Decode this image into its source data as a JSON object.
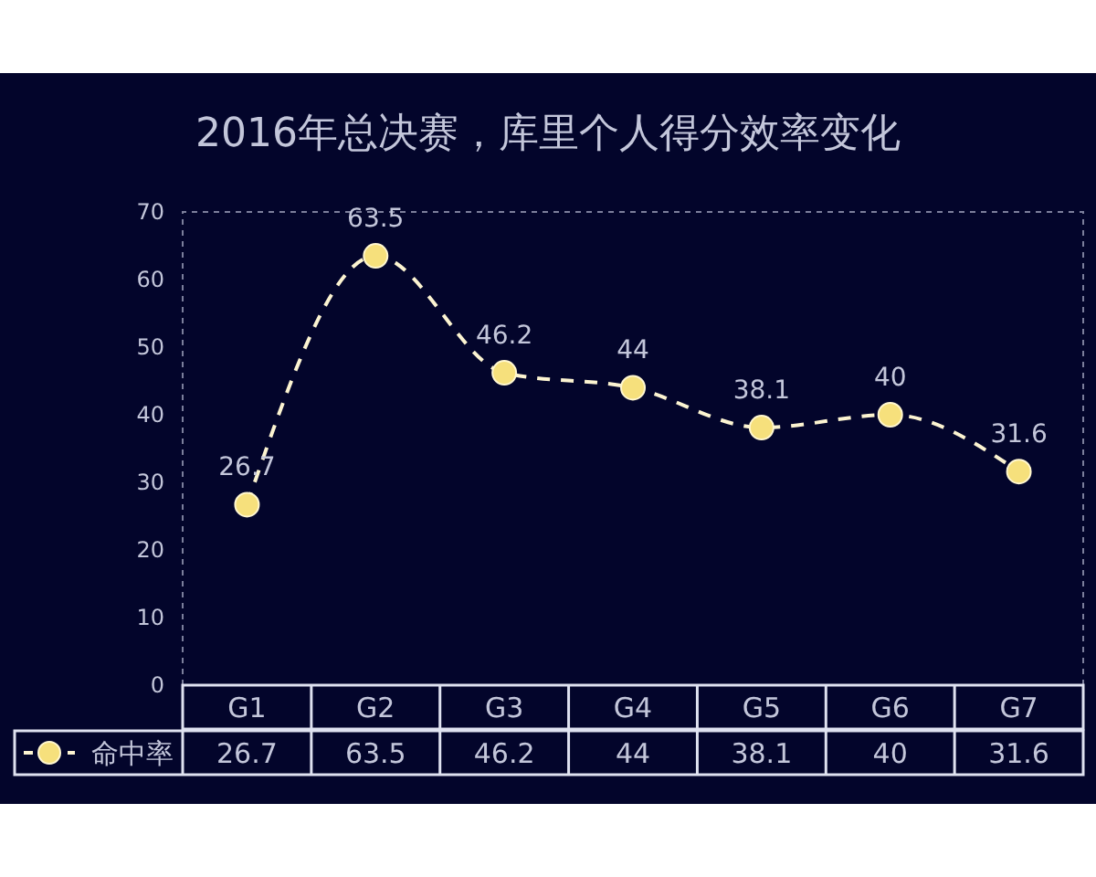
{
  "chart_data": {
    "type": "line",
    "title": "2016年总决赛，库里个人得分效率变化",
    "categories": [
      "G1",
      "G2",
      "G3",
      "G4",
      "G5",
      "G6",
      "G7"
    ],
    "series": [
      {
        "name": "命中率",
        "color": "#f6e07c",
        "values": [
          26.7,
          63.5,
          46.2,
          44,
          38.1,
          40,
          31.6
        ]
      }
    ],
    "ylim": [
      0,
      70
    ],
    "yticks": [
      0,
      10,
      20,
      30,
      40,
      50,
      60,
      70
    ],
    "annotations": [
      {
        "text": "26.7",
        "x": "G1",
        "y": 26.7
      },
      {
        "text": "63.5",
        "x": "G2",
        "y": 63.5
      },
      {
        "text": "46.2",
        "x": "G3",
        "y": 46.2
      },
      {
        "text": "44",
        "x": "G4",
        "y": 44
      },
      {
        "text": "38.1",
        "x": "G5",
        "y": 38.1
      },
      {
        "text": "40",
        "x": "G6",
        "y": 40
      },
      {
        "text": "31.6",
        "x": "G7",
        "y": 31.6
      }
    ],
    "legend": "bottom left",
    "marker": "circle",
    "line_style": "dashed",
    "data_labels": true
  }
}
